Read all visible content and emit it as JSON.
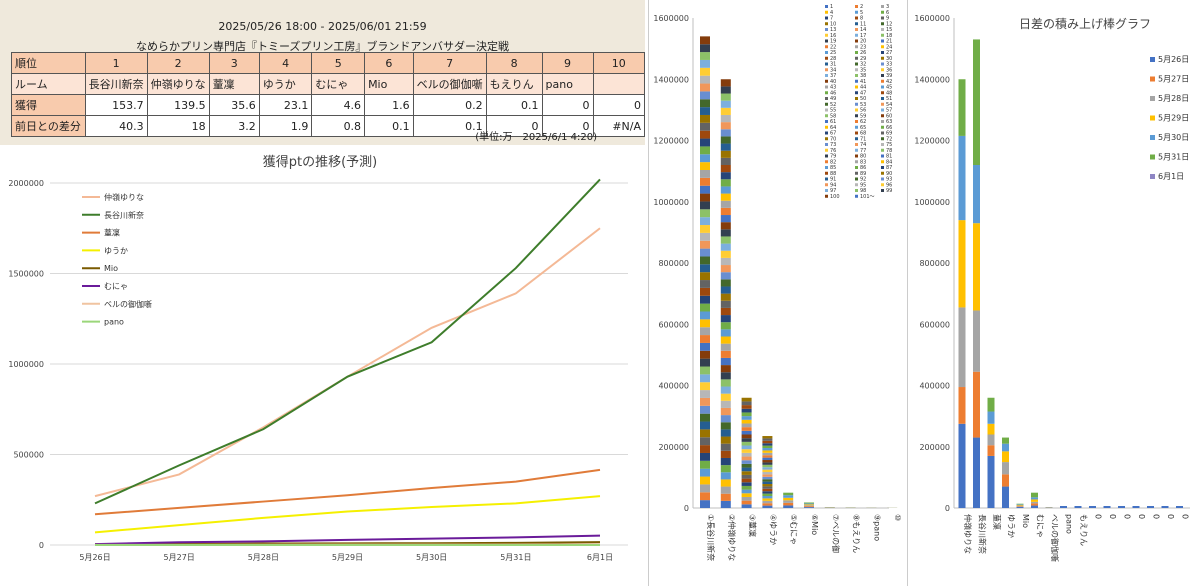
{
  "header": {
    "period": "2025/05/26 18:00 - 2025/06/01 21:59",
    "event_title": "なめらかプリン専門店『トミーズプリン工房』ブランドアンバサダー決定戦",
    "unit_note": "(単位:万　2025/6/1 4:20)"
  },
  "table": {
    "row_labels": [
      "順位",
      "ルーム",
      "獲得",
      "前日との差分"
    ],
    "ranks": [
      "1",
      "2",
      "3",
      "4",
      "5",
      "6",
      "7",
      "8",
      "9",
      "10"
    ],
    "rooms": [
      "長谷川新奈",
      "仲嶺ゆりな",
      "蕫凜",
      "ゆうか",
      "むにゃ",
      "Mio",
      "ベルの御伽噺",
      "もえりん",
      "pano",
      ""
    ],
    "points": [
      "153.7",
      "139.5",
      "35.6",
      "23.1",
      "4.6",
      "1.6",
      "0.2",
      "0.1",
      "0",
      "0"
    ],
    "diffs": [
      "40.3",
      "18",
      "3.2",
      "1.9",
      "0.8",
      "0.1",
      "0.1",
      "0",
      "0",
      "#N/A"
    ]
  },
  "chart_data": [
    {
      "type": "line",
      "title": "獲得ptの推移(予測)",
      "categories": [
        "5月26日",
        "5月27日",
        "5月28日",
        "5月29日",
        "5月30日",
        "5月31日",
        "6月1日"
      ],
      "ylim": [
        0,
        2000000
      ],
      "yticks": [
        "0",
        "500000",
        "1000000",
        "1500000",
        "2000000"
      ],
      "grid": true,
      "legend": "top-left",
      "series": [
        {
          "name": "仲嶺ゆりな",
          "color": "#f4b996",
          "values": [
            270000,
            390000,
            650000,
            930000,
            1200000,
            1390000,
            1750000
          ]
        },
        {
          "name": "長谷川新奈",
          "color": "#3e7d2b",
          "values": [
            230000,
            440000,
            640000,
            930000,
            1120000,
            1530000,
            2020000
          ]
        },
        {
          "name": "蕫凜",
          "color": "#e07b39",
          "values": [
            170000,
            205000,
            240000,
            275000,
            315000,
            350000,
            415000
          ]
        },
        {
          "name": "ゆうか",
          "color": "#f5f000",
          "values": [
            70000,
            110000,
            150000,
            185000,
            210000,
            230000,
            270000
          ]
        },
        {
          "name": "Mio",
          "color": "#7a5a00",
          "values": [
            5000,
            6000,
            8000,
            9000,
            10000,
            12000,
            16000
          ]
        },
        {
          "name": "むにゃ",
          "color": "#6a1b9a",
          "values": [
            5000,
            15000,
            20000,
            28000,
            35000,
            42000,
            52000
          ]
        },
        {
          "name": "ベルの御伽噺",
          "color": "#f0c4a0",
          "values": [
            1000,
            1000,
            1500,
            2000,
            2000,
            2000,
            2500
          ]
        },
        {
          "name": "pano",
          "color": "#9bd67a",
          "values": [
            0,
            0,
            0,
            0,
            0,
            0,
            0
          ]
        }
      ]
    },
    {
      "type": "bar",
      "stacked": true,
      "categories": [
        "①長谷川新奈",
        "②仲嶺ゆりな",
        "③蕫凜",
        "④ゆうか",
        "⑤むにゃ",
        "⑥Mio",
        "⑦ベルの御",
        "⑧もえりん",
        "⑨pano",
        "⑩"
      ],
      "ylim": [
        0,
        1600000
      ],
      "yticks": [
        "0",
        "200000",
        "400000",
        "600000",
        "800000",
        "1000000",
        "1200000",
        "1400000",
        "1600000"
      ],
      "totals": [
        1540000,
        1400000,
        360000,
        235000,
        50000,
        18000,
        3000,
        2000,
        1500,
        1000
      ],
      "legend": "right",
      "legend_labels": [
        "1",
        "2",
        "3",
        "4",
        "5",
        "6",
        "7",
        "8",
        "9",
        "10",
        "11",
        "12",
        "13",
        "14",
        "15",
        "16",
        "17",
        "18",
        "19",
        "20",
        "21",
        "22",
        "23",
        "24",
        "25",
        "26",
        "27",
        "28",
        "29",
        "30",
        "31",
        "32",
        "33",
        "34",
        "35",
        "36",
        "37",
        "38",
        "39",
        "40",
        "41",
        "42",
        "43",
        "44",
        "45",
        "46",
        "47",
        "48",
        "49",
        "50",
        "51",
        "52",
        "53",
        "54",
        "55",
        "56",
        "57",
        "58",
        "59",
        "60",
        "61",
        "62",
        "63",
        "64",
        "65",
        "66",
        "67",
        "68",
        "69",
        "70",
        "71",
        "72",
        "73",
        "74",
        "75",
        "76",
        "77",
        "78",
        "79",
        "80",
        "81",
        "82",
        "83",
        "84",
        "85",
        "86",
        "87",
        "88",
        "89",
        "90",
        "91",
        "92",
        "93",
        "94",
        "95",
        "96",
        "97",
        "98",
        "99",
        "100",
        "101〜"
      ],
      "palette": [
        "#4472c4",
        "#ed7d31",
        "#a5a5a5",
        "#ffc000",
        "#5b9bd5",
        "#70ad47",
        "#264478",
        "#9e480e",
        "#636363",
        "#997300",
        "#255e91",
        "#43682b",
        "#698ed0",
        "#f1975a",
        "#b7b7b7",
        "#ffcd33",
        "#7cafdd",
        "#8cc168",
        "#333f50",
        "#843c0c"
      ]
    },
    {
      "type": "bar",
      "stacked": true,
      "title": "日差の積み上げ棒グラフ",
      "categories": [
        "仲嶺ゆりな",
        "長谷川新奈",
        "蕫凜",
        "ゆうか",
        "Mio",
        "むにゃ",
        "ベルの御伽噺",
        "pano",
        "もえりん",
        "0",
        "0",
        "0",
        "0",
        "0",
        "0",
        "0"
      ],
      "ylim": [
        0,
        1600000
      ],
      "yticks": [
        "0",
        "200000",
        "400000",
        "600000",
        "800000",
        "1000000",
        "1200000",
        "1400000",
        "1600000"
      ],
      "legend": "right",
      "series": [
        {
          "name": "5月26日",
          "color": "#4472c4",
          "values": [
            275000,
            230000,
            170000,
            70000,
            4000,
            8000,
            1000,
            0,
            0,
            0,
            0,
            0,
            0,
            0,
            0,
            0
          ]
        },
        {
          "name": "5月27日",
          "color": "#ed7d31",
          "values": [
            120000,
            215000,
            35000,
            40000,
            2000,
            7000,
            500,
            0,
            0,
            0,
            0,
            0,
            0,
            0,
            0,
            0
          ]
        },
        {
          "name": "5月28日",
          "color": "#a5a5a5",
          "values": [
            260000,
            200000,
            35000,
            40000,
            2000,
            5000,
            500,
            0,
            0,
            0,
            0,
            0,
            0,
            0,
            0,
            0
          ]
        },
        {
          "name": "5月29日",
          "color": "#ffc000",
          "values": [
            285000,
            285000,
            35000,
            35000,
            2000,
            8000,
            300,
            0,
            0,
            0,
            0,
            0,
            0,
            0,
            0,
            0
          ]
        },
        {
          "name": "5月30日",
          "color": "#5b9bd5",
          "values": [
            275000,
            190000,
            40000,
            25000,
            2000,
            7000,
            300,
            0,
            0,
            0,
            0,
            0,
            0,
            0,
            0,
            0
          ]
        },
        {
          "name": "5月31日",
          "color": "#70ad47",
          "values": [
            185000,
            410000,
            45000,
            20000,
            2000,
            15000,
            400,
            0,
            0,
            0,
            0,
            0,
            0,
            0,
            0,
            0
          ]
        },
        {
          "name": "6月1日",
          "color": "#8e86c4",
          "values": [
            0,
            0,
            0,
            0,
            0,
            0,
            0,
            0,
            0,
            0,
            0,
            0,
            0,
            0,
            0,
            0
          ]
        }
      ]
    }
  ]
}
